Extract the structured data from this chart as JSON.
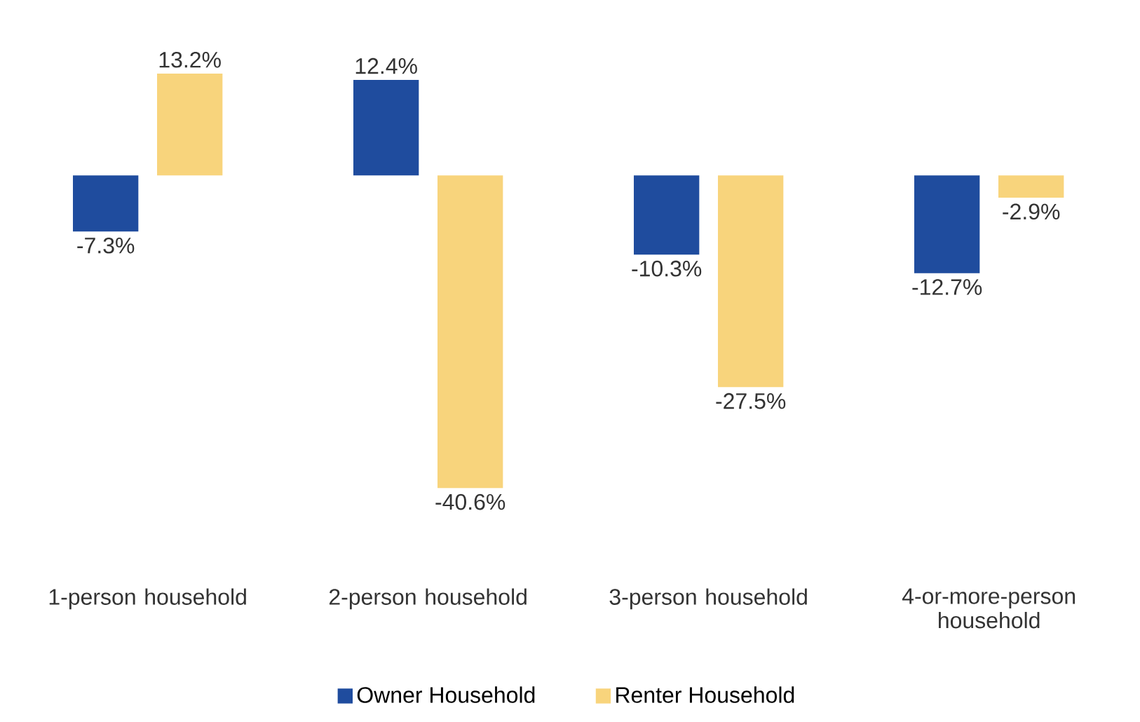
{
  "chart_data": {
    "type": "bar",
    "categories": [
      "1-person household",
      "2-person household",
      "3-person household",
      "4-or-more-person household"
    ],
    "series": [
      {
        "name": "Owner Household",
        "color": "#1f4c9e",
        "values": [
          -7.3,
          12.4,
          -10.3,
          -12.7
        ],
        "value_labels": [
          "-7.3%",
          "12.4%",
          "-10.3%",
          "-12.7%"
        ]
      },
      {
        "name": "Renter Household",
        "color": "#f8d47c",
        "values": [
          13.2,
          -40.6,
          -27.5,
          -2.9
        ],
        "value_labels": [
          "13.2%",
          "-40.6%",
          "-27.5%",
          "-2.9%"
        ]
      }
    ],
    "legend": "bottom"
  }
}
